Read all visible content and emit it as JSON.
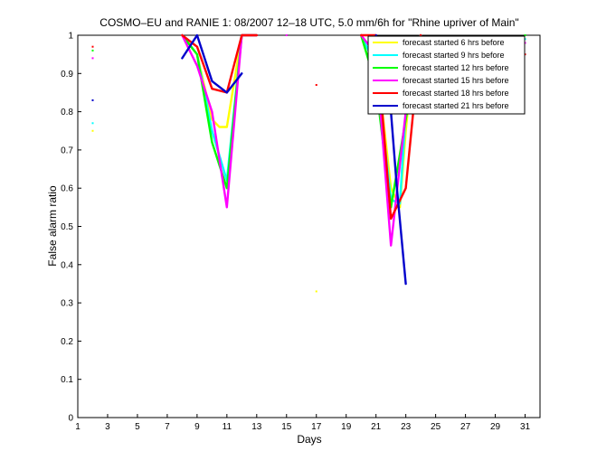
{
  "chart_data": {
    "type": "line",
    "title": "COSMO–EU and RANIE 1: 08/2007 12–18 UTC, 5.0 mm/6h for \"Rhine upriver of Main\"",
    "xlabel": "Days",
    "ylabel": "False alarm ratio",
    "xlim": [
      1,
      32
    ],
    "ylim": [
      0,
      1
    ],
    "xticks": [
      1,
      3,
      5,
      7,
      9,
      11,
      13,
      15,
      17,
      19,
      21,
      23,
      25,
      27,
      29,
      31
    ],
    "yticks": [
      0,
      0.1,
      0.2,
      0.3,
      0.4,
      0.5,
      0.6,
      0.7,
      0.8,
      0.9,
      1
    ],
    "grid": false,
    "legend_position": "top-right",
    "series": [
      {
        "name": "forecast started 6 hrs before",
        "color": "#ffff00",
        "segments": [
          [
            [
              8,
              1
            ],
            [
              9,
              0.95
            ],
            [
              10,
              0.78
            ],
            [
              10.5,
              0.76
            ],
            [
              11,
              0.76
            ],
            [
              12,
              1
            ],
            [
              13,
              1
            ]
          ],
          [
            [
              20,
              1
            ],
            [
              21,
              0.95
            ],
            [
              22,
              0.6
            ],
            [
              22.6,
              0.55
            ],
            [
              23,
              0.75
            ],
            [
              23.5,
              0.95
            ],
            [
              24,
              1
            ]
          ]
        ],
        "points": [
          [
            2,
            0.75
          ],
          [
            17,
            0.33
          ]
        ]
      },
      {
        "name": "forecast started 9 hrs before",
        "color": "#00ffff",
        "segments": [
          [
            [
              8,
              1
            ],
            [
              9,
              0.95
            ],
            [
              10,
              0.75
            ],
            [
              11,
              0.62
            ],
            [
              12,
              1
            ],
            [
              13,
              1
            ]
          ],
          [
            [
              20,
              1
            ],
            [
              21,
              0.92
            ],
            [
              22,
              0.57
            ],
            [
              22.6,
              0.56
            ],
            [
              23,
              0.8
            ],
            [
              24,
              1
            ]
          ]
        ],
        "points": [
          [
            2,
            0.77
          ],
          [
            31,
            0.99
          ]
        ]
      },
      {
        "name": "forecast started 12 hrs before",
        "color": "#00ff00",
        "segments": [
          [
            [
              8,
              1
            ],
            [
              9,
              0.95
            ],
            [
              10,
              0.72
            ],
            [
              11,
              0.6
            ],
            [
              12,
              1
            ],
            [
              13,
              1
            ]
          ],
          [
            [
              20,
              1
            ],
            [
              21,
              0.87
            ],
            [
              22,
              0.55
            ],
            [
              23,
              0.78
            ],
            [
              24,
              1
            ]
          ]
        ],
        "points": [
          [
            2,
            0.96
          ],
          [
            31,
            1
          ]
        ]
      },
      {
        "name": "forecast started 15 hrs before",
        "color": "#ff00ff",
        "segments": [
          [
            [
              8,
              1
            ],
            [
              9,
              0.92
            ],
            [
              10,
              0.8
            ],
            [
              11,
              0.55
            ],
            [
              12,
              1
            ],
            [
              13,
              1
            ]
          ],
          [
            [
              20,
              1
            ],
            [
              21,
              0.95
            ],
            [
              22,
              0.45
            ],
            [
              23,
              0.8
            ],
            [
              24,
              1
            ]
          ]
        ],
        "points": [
          [
            2,
            0.94
          ],
          [
            15,
            1
          ],
          [
            31,
            0.98
          ]
        ]
      },
      {
        "name": "forecast started 18 hrs before",
        "color": "#ff0000",
        "segments": [
          [
            [
              8,
              1
            ],
            [
              9,
              0.97
            ],
            [
              10,
              0.86
            ],
            [
              11,
              0.85
            ],
            [
              12,
              1
            ],
            [
              13,
              1
            ]
          ],
          [
            [
              20,
              1
            ],
            [
              21,
              1
            ],
            [
              22,
              0.52
            ],
            [
              23,
              0.6
            ],
            [
              24,
              1
            ]
          ]
        ],
        "points": [
          [
            2,
            0.97
          ],
          [
            17,
            0.87
          ],
          [
            31,
            0.95
          ]
        ]
      },
      {
        "name": "forecast started 21 hrs before",
        "color": "#0000cc",
        "segments": [
          [
            [
              8,
              0.94
            ],
            [
              9,
              1
            ],
            [
              10,
              0.88
            ],
            [
              11,
              0.85
            ],
            [
              12,
              0.9
            ]
          ],
          [
            [
              21,
              1
            ],
            [
              22,
              0.8
            ],
            [
              22.4,
              0.6
            ],
            [
              23,
              0.35
            ]
          ]
        ],
        "points": [
          [
            2,
            0.83
          ]
        ]
      }
    ]
  }
}
